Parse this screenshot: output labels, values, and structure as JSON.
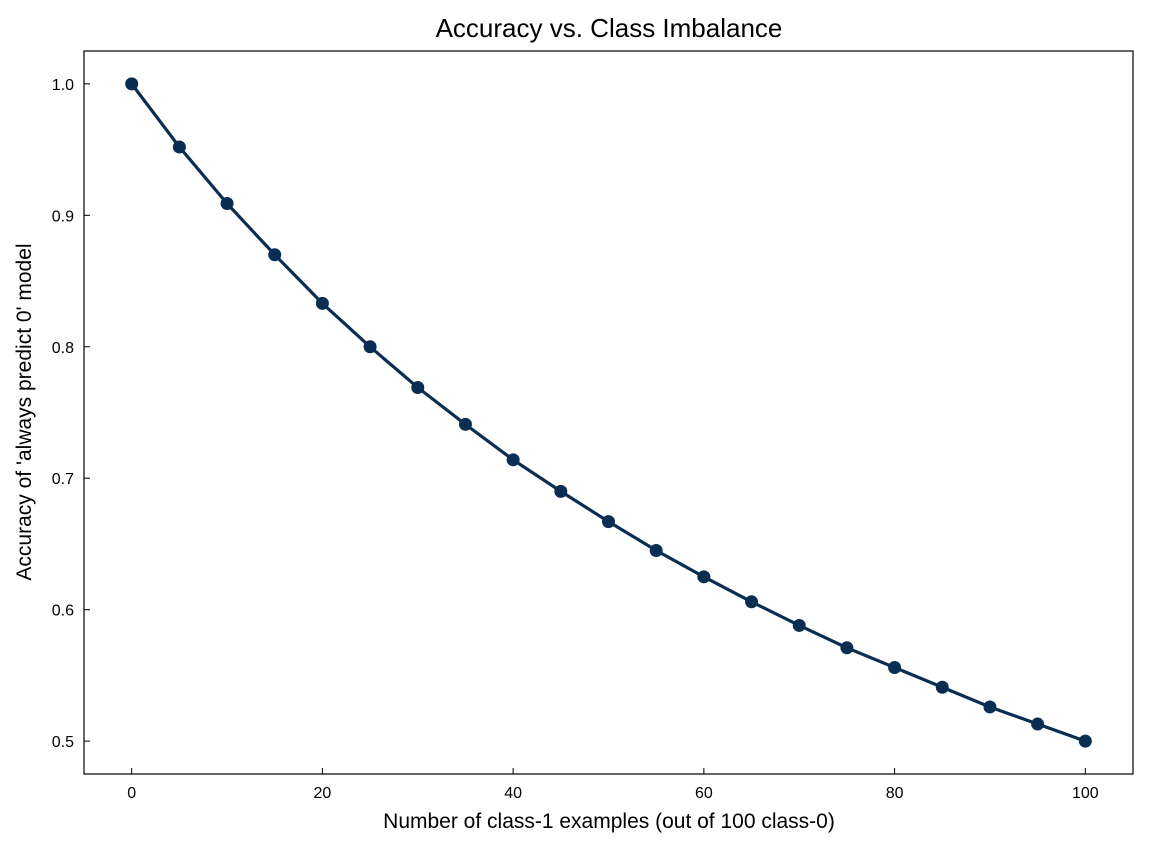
{
  "chart_data": {
    "type": "line",
    "title": "Accuracy vs. Class Imbalance",
    "xlabel": "Number of class-1 examples (out of 100 class-0)",
    "ylabel": "Accuracy of 'always predict 0' model",
    "xlim": [
      -5,
      105
    ],
    "ylim": [
      0.475,
      1.025
    ],
    "xticks": [
      0,
      20,
      40,
      60,
      80,
      100
    ],
    "xtick_labels": [
      "0",
      "20",
      "40",
      "60",
      "80",
      "100"
    ],
    "yticks": [
      0.5,
      0.6,
      0.7,
      0.8,
      0.9,
      1.0
    ],
    "ytick_labels": [
      "0.5",
      "0.6",
      "0.7",
      "0.8",
      "0.9",
      "1.0"
    ],
    "grid": false,
    "series": [
      {
        "color": "#0a2d52",
        "marker": "circle",
        "x": [
          0,
          5,
          10,
          15,
          20,
          25,
          30,
          35,
          40,
          45,
          50,
          55,
          60,
          65,
          70,
          75,
          80,
          85,
          90,
          95,
          100
        ],
        "y": [
          1.0,
          0.952,
          0.909,
          0.87,
          0.833,
          0.8,
          0.769,
          0.741,
          0.714,
          0.69,
          0.667,
          0.645,
          0.625,
          0.606,
          0.588,
          0.571,
          0.556,
          0.541,
          0.526,
          0.513,
          0.5
        ]
      }
    ]
  }
}
